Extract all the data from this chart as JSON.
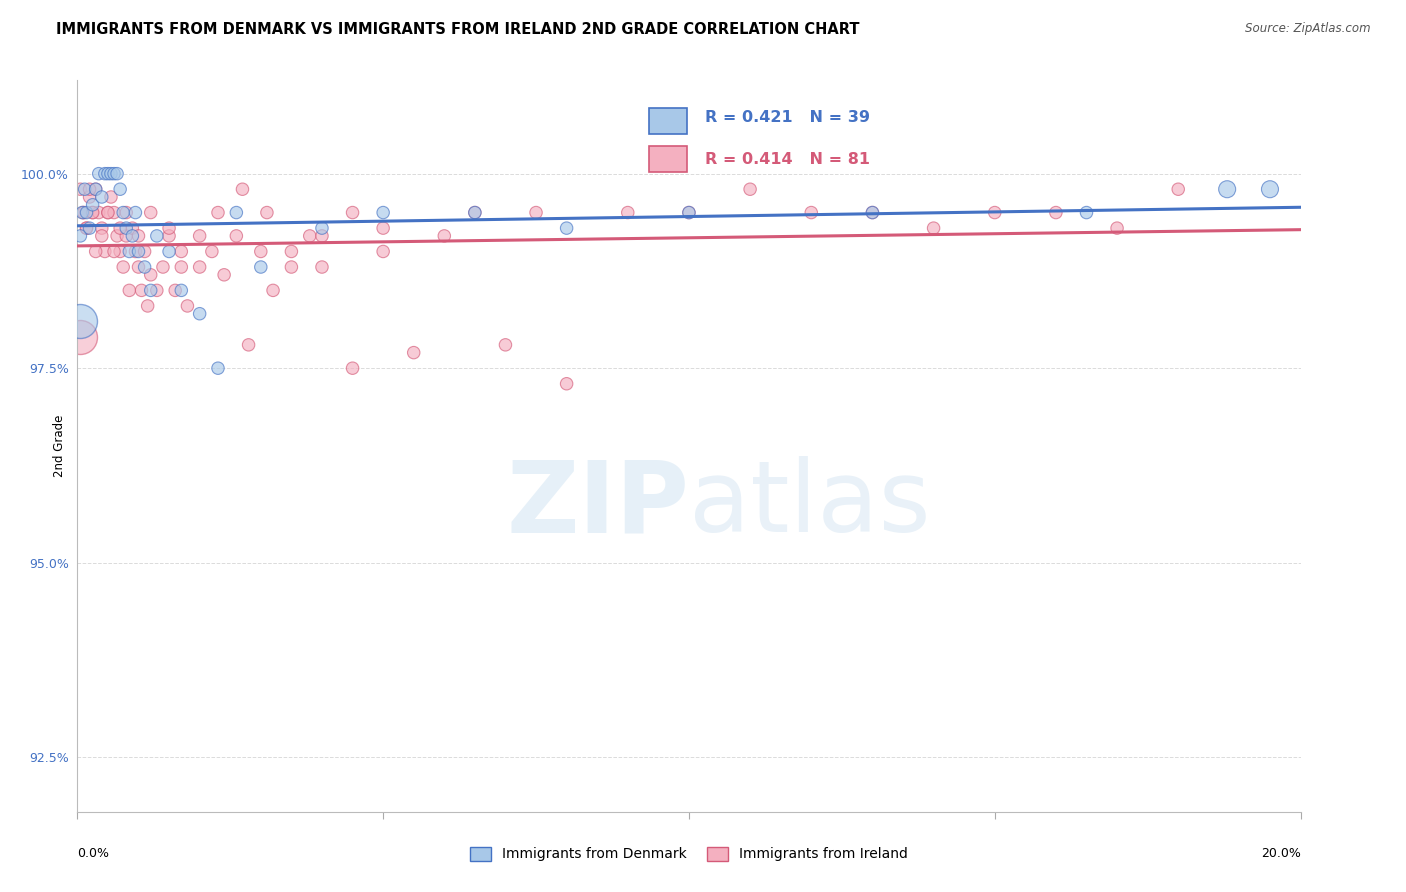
{
  "title": "IMMIGRANTS FROM DENMARK VS IMMIGRANTS FROM IRELAND 2ND GRADE CORRELATION CHART",
  "source": "Source: ZipAtlas.com",
  "ylabel": "2nd Grade",
  "y_ticks": [
    92.5,
    95.0,
    97.5,
    100.0
  ],
  "y_tick_labels": [
    "92.5%",
    "95.0%",
    "97.5%",
    "100.0%"
  ],
  "xlim": [
    0.0,
    20.0
  ],
  "ylim": [
    91.8,
    101.2
  ],
  "plot_ylim": [
    91.8,
    101.2
  ],
  "watermark_zip": "ZIP",
  "watermark_atlas": "atlas",
  "legend_denmark": "Immigrants from Denmark",
  "legend_ireland": "Immigrants from Ireland",
  "R_denmark": 0.421,
  "N_denmark": 39,
  "R_ireland": 0.414,
  "N_ireland": 81,
  "color_denmark": "#a8c8e8",
  "color_ireland": "#f4b0c0",
  "trendline_color_denmark": "#4472c4",
  "trendline_color_ireland": "#d45a78",
  "background_color": "#ffffff",
  "grid_color": "#cccccc",
  "title_fontsize": 10.5,
  "axis_label_fontsize": 8.5,
  "tick_fontsize": 9,
  "denmark_x": [
    0.05,
    0.08,
    0.12,
    0.15,
    0.2,
    0.25,
    0.3,
    0.35,
    0.4,
    0.45,
    0.5,
    0.55,
    0.6,
    0.65,
    0.7,
    0.75,
    0.8,
    0.85,
    0.9,
    0.95,
    1.0,
    1.1,
    1.2,
    1.3,
    1.5,
    1.7,
    2.0,
    2.3,
    2.6,
    3.0,
    4.0,
    5.0,
    6.5,
    8.0,
    10.0,
    13.0,
    16.5,
    18.8,
    19.5
  ],
  "denmark_y": [
    99.2,
    99.5,
    99.8,
    99.5,
    99.3,
    99.6,
    99.8,
    100.0,
    99.7,
    100.0,
    100.0,
    100.0,
    100.0,
    100.0,
    99.8,
    99.5,
    99.3,
    99.0,
    99.2,
    99.5,
    99.0,
    98.8,
    98.5,
    99.2,
    99.0,
    98.5,
    98.2,
    97.5,
    99.5,
    98.8,
    99.3,
    99.5,
    99.5,
    99.3,
    99.5,
    99.5,
    99.5,
    99.8,
    99.8
  ],
  "denmark_sizes": [
    80,
    80,
    80,
    80,
    80,
    80,
    80,
    80,
    80,
    80,
    80,
    80,
    80,
    80,
    80,
    80,
    80,
    80,
    80,
    80,
    80,
    80,
    80,
    80,
    80,
    80,
    80,
    80,
    80,
    80,
    80,
    80,
    80,
    80,
    80,
    80,
    80,
    150,
    150
  ],
  "ireland_x": [
    0.05,
    0.1,
    0.15,
    0.2,
    0.25,
    0.3,
    0.35,
    0.4,
    0.45,
    0.5,
    0.55,
    0.6,
    0.65,
    0.7,
    0.75,
    0.8,
    0.85,
    0.9,
    0.95,
    1.0,
    1.05,
    1.1,
    1.15,
    1.2,
    1.3,
    1.4,
    1.5,
    1.6,
    1.7,
    1.8,
    2.0,
    2.2,
    2.4,
    2.6,
    2.8,
    3.0,
    3.2,
    3.5,
    3.8,
    4.0,
    4.5,
    5.0,
    5.5,
    6.0,
    6.5,
    7.0,
    7.5,
    8.0,
    9.0,
    10.0,
    11.0,
    12.0,
    13.0,
    14.0,
    15.0,
    16.0,
    17.0,
    18.0,
    0.1,
    0.15,
    0.2,
    0.25,
    0.3,
    0.4,
    0.5,
    0.6,
    0.7,
    0.8,
    1.0,
    1.2,
    1.5,
    1.7,
    2.0,
    2.3,
    2.7,
    3.1,
    3.5,
    4.0,
    4.5,
    5.0
  ],
  "ireland_y": [
    99.8,
    99.5,
    99.3,
    99.7,
    99.5,
    99.8,
    99.5,
    99.3,
    99.0,
    99.5,
    99.7,
    99.5,
    99.2,
    99.0,
    98.8,
    99.2,
    98.5,
    99.3,
    99.0,
    98.8,
    98.5,
    99.0,
    98.3,
    98.7,
    98.5,
    98.8,
    99.2,
    98.5,
    98.8,
    98.3,
    98.8,
    99.0,
    98.7,
    99.2,
    97.8,
    99.0,
    98.5,
    98.8,
    99.2,
    98.8,
    97.5,
    99.0,
    97.7,
    99.2,
    99.5,
    97.8,
    99.5,
    97.3,
    99.5,
    99.5,
    99.8,
    99.5,
    99.5,
    99.3,
    99.5,
    99.5,
    99.3,
    99.8,
    99.5,
    99.3,
    99.8,
    99.5,
    99.0,
    99.2,
    99.5,
    99.0,
    99.3,
    99.5,
    99.2,
    99.5,
    99.3,
    99.0,
    99.2,
    99.5,
    99.8,
    99.5,
    99.0,
    99.2,
    99.5,
    99.3
  ],
  "ireland_sizes": [
    80,
    80,
    80,
    80,
    80,
    80,
    80,
    80,
    80,
    80,
    80,
    80,
    80,
    80,
    80,
    80,
    80,
    80,
    80,
    80,
    80,
    80,
    80,
    80,
    80,
    80,
    80,
    80,
    80,
    80,
    80,
    80,
    80,
    80,
    80,
    80,
    80,
    80,
    80,
    80,
    80,
    80,
    80,
    80,
    80,
    80,
    80,
    80,
    80,
    80,
    80,
    80,
    80,
    80,
    80,
    80,
    80,
    80,
    80,
    80,
    80,
    80,
    80,
    80,
    80,
    80,
    80,
    80,
    80,
    80,
    80,
    80,
    80,
    80,
    80,
    80,
    80,
    80,
    80,
    80
  ],
  "large_blue_x": 0.0,
  "large_blue_y": 98.0,
  "large_pink_x": 0.0,
  "large_pink_y": 97.8
}
